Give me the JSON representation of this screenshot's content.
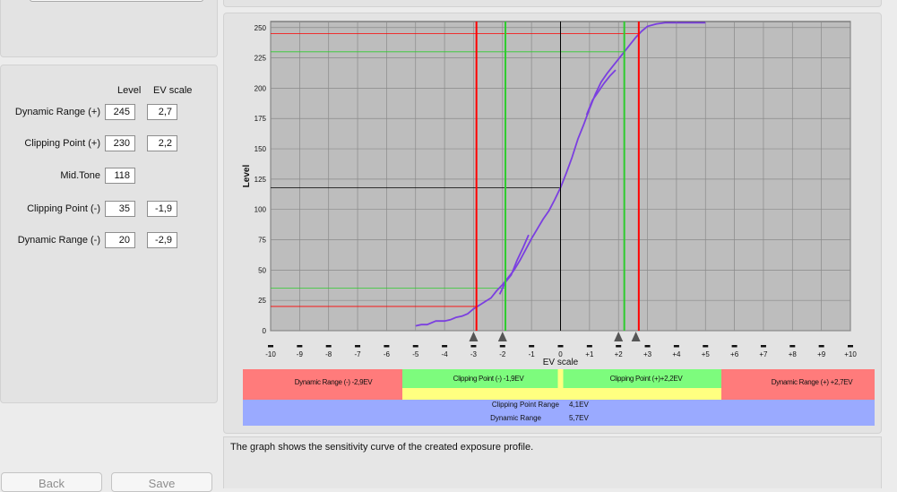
{
  "params": {
    "col_level": "Level",
    "col_ev": "EV scale",
    "rows": [
      {
        "label": "Dynamic Range (+)",
        "level": "245",
        "ev": "2,7"
      },
      {
        "label": "Clipping Point (+)",
        "level": "230",
        "ev": "2,2"
      },
      {
        "label": "Mid.Tone",
        "level": "118",
        "ev": ""
      },
      {
        "label": "Clipping Point (-)",
        "level": "35",
        "ev": "-1,9"
      },
      {
        "label": "Dynamic Range (-)",
        "level": "20",
        "ev": "-2,9"
      }
    ]
  },
  "buttons": {
    "back": "Back",
    "save": "Save"
  },
  "description": "The graph shows the sensitivity curve of the created exposure profile.",
  "colors": {
    "plot_bg": "#bdbdbd",
    "curve": "#7b3fe0",
    "red": "#ff0000",
    "green": "#2ecc2e",
    "band_red": "#ff7b7b",
    "band_green": "#7dfc7d",
    "band_yellow": "#ffff80",
    "band_blue": "#9aaaff"
  },
  "chart_data": {
    "type": "line",
    "xlabel": "EV scale",
    "ylabel": "Level",
    "xlim": [
      -10,
      10
    ],
    "ylim": [
      0,
      255
    ],
    "x_ticks": [
      "-10",
      "-9",
      "-8",
      "-7",
      "-6",
      "-5",
      "-4",
      "-3",
      "-2",
      "-1",
      "0",
      "+1",
      "+2",
      "+3",
      "+4",
      "+5",
      "+6",
      "+7",
      "+8",
      "+9",
      "+10"
    ],
    "y_ticks": [
      0,
      25,
      50,
      75,
      100,
      125,
      150,
      175,
      200,
      225,
      250
    ],
    "grid": true,
    "series": [
      {
        "points": [
          [
            -5,
            4
          ],
          [
            -4.8,
            5
          ],
          [
            -4.6,
            5
          ],
          [
            -4.3,
            8
          ],
          [
            -4,
            8
          ],
          [
            -3.8,
            9
          ],
          [
            -3.6,
            11
          ],
          [
            -3.4,
            12
          ],
          [
            -3.2,
            14
          ],
          [
            -3,
            18
          ],
          [
            -2.8,
            21
          ],
          [
            -2.6,
            24
          ],
          [
            -2.4,
            27
          ],
          [
            -2.2,
            33
          ],
          [
            -2,
            38
          ],
          [
            -1.8,
            44
          ],
          [
            -1.6,
            50
          ],
          [
            -1.4,
            58
          ],
          [
            -1.2,
            67
          ],
          [
            -1,
            76
          ],
          [
            -0.8,
            84
          ],
          [
            -0.6,
            92
          ],
          [
            -0.4,
            99
          ],
          [
            -0.2,
            108
          ],
          [
            0,
            118
          ],
          [
            0.2,
            130
          ],
          [
            0.4,
            143
          ],
          [
            0.6,
            158
          ],
          [
            0.8,
            170
          ],
          [
            1,
            183
          ],
          [
            1.2,
            195
          ],
          [
            1.4,
            205
          ],
          [
            1.6,
            212
          ],
          [
            1.8,
            218
          ],
          [
            2,
            224
          ],
          [
            2.2,
            230
          ],
          [
            2.4,
            236
          ],
          [
            2.6,
            242
          ],
          [
            2.8,
            247
          ],
          [
            3,
            251
          ],
          [
            3.3,
            253
          ],
          [
            3.6,
            254
          ],
          [
            4,
            254
          ],
          [
            5,
            254
          ]
        ]
      },
      {
        "points": [
          [
            -2.1,
            30
          ],
          [
            -1.9,
            40
          ],
          [
            -1.7,
            46
          ],
          [
            -1.5,
            58
          ],
          [
            -1.3,
            68
          ],
          [
            -1.1,
            79
          ]
        ]
      },
      {
        "points": [
          [
            0.9,
            178
          ],
          [
            1.1,
            190
          ],
          [
            1.3,
            197
          ],
          [
            1.5,
            204
          ],
          [
            1.7,
            210
          ],
          [
            1.9,
            215
          ]
        ]
      }
    ],
    "vlines": [
      {
        "x": -2.9,
        "color": "red"
      },
      {
        "x": -1.9,
        "color": "green"
      },
      {
        "x": 0,
        "color": "black"
      },
      {
        "x": 2.2,
        "color": "green"
      },
      {
        "x": 2.7,
        "color": "red"
      }
    ],
    "hlines": [
      {
        "y": 245,
        "color": "red",
        "x_to": 2.7
      },
      {
        "y": 230,
        "color": "green",
        "x_to": 2.2
      },
      {
        "y": 118,
        "color": "black",
        "x_to": 0
      },
      {
        "y": 35,
        "color": "green",
        "x_to": -1.9
      },
      {
        "y": 20,
        "color": "red",
        "x_to": -2.9
      }
    ],
    "markers_x": [
      -3,
      -2,
      2,
      2.6
    ],
    "bands": {
      "dr_minus": "Dynamic Range (-) -2,9EV",
      "cp_minus": "Clipping Point (-) -1,9EV",
      "cp_plus": "Clipping Point (+)+2,2EV",
      "dr_plus": "Dynamic Range (+) +2,7EV",
      "cp_range_label": "Clipping Point Range",
      "cp_range_value": "4,1EV",
      "dr_label": "Dynamic Range",
      "dr_value": "5,7EV"
    }
  }
}
